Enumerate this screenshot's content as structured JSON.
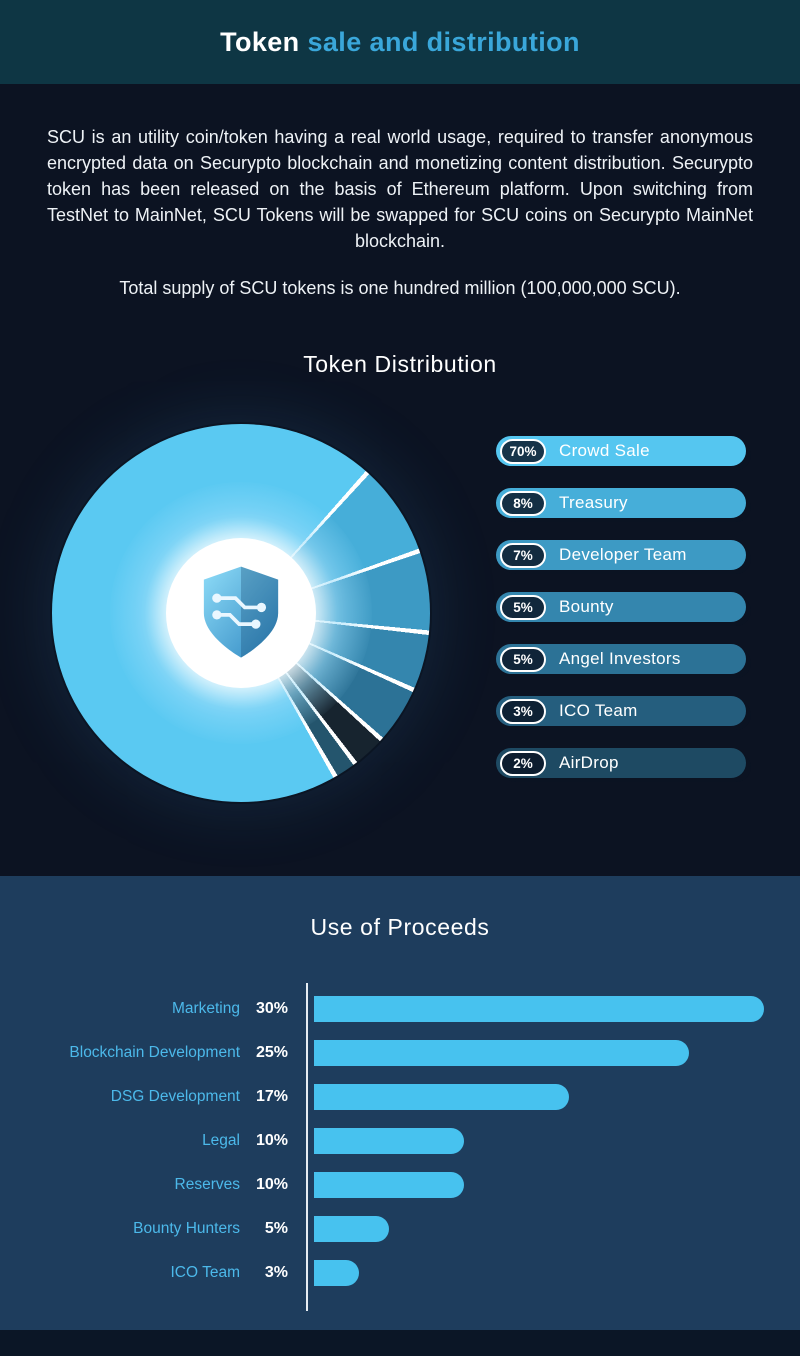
{
  "header": {
    "title_bold": "Token",
    "title_accent": " sale and distribution"
  },
  "intro": {
    "paragraph": "SCU is an utility coin/token having a real world usage, required to transfer anonymous encrypted data on Securypto blockchain and monetizing content distribution. Securypto token has been released on the basis of Ethereum platform. Upon switching from TestNet to MainNet, SCU Tokens will be swapped for SCU coins on Securypto MainNet blockchain.",
    "supply": "Total supply of SCU tokens is one hundred million (100,000,000 SCU)."
  },
  "distribution": {
    "title": "Token Distribution",
    "legend": [
      {
        "pct": "70%",
        "label": "Crowd Sale",
        "color": "#55c6f0"
      },
      {
        "pct": "8%",
        "label": "Treasury",
        "color": "#46aed9"
      },
      {
        "pct": "7%",
        "label": "Developer Team",
        "color": "#3d9ac4"
      },
      {
        "pct": "5%",
        "label": "Bounty",
        "color": "#3486ae"
      },
      {
        "pct": "5%",
        "label": "Angel Investors",
        "color": "#2c7296"
      },
      {
        "pct": "3%",
        "label": "ICO Team",
        "color": "#255e7e"
      },
      {
        "pct": "2%",
        "label": "AirDrop",
        "color": "#1e4a63"
      }
    ]
  },
  "proceeds": {
    "title": "Use of Proceeds",
    "axis_max": 30,
    "items": [
      {
        "label": "Marketing",
        "pct": "30%",
        "value": 30
      },
      {
        "label": "Blockchain Development",
        "pct": "25%",
        "value": 25
      },
      {
        "label": "DSG Development",
        "pct": "17%",
        "value": 17
      },
      {
        "label": "Legal",
        "pct": "10%",
        "value": 10
      },
      {
        "label": "Reserves",
        "pct": "10%",
        "value": 10
      },
      {
        "label": "Bounty Hunters",
        "pct": "5%",
        "value": 5
      },
      {
        "label": "ICO Team",
        "pct": "3%",
        "value": 3
      }
    ]
  },
  "chart_data": [
    {
      "type": "pie",
      "title": "Token Distribution",
      "labels": [
        "Crowd Sale",
        "Treasury",
        "Developer Team",
        "Bounty",
        "Angel Investors",
        "ICO Team",
        "AirDrop"
      ],
      "values": [
        70,
        8,
        7,
        5,
        5,
        3,
        2
      ],
      "unit": "%",
      "legend_position": "right",
      "start_angle": 42,
      "draw_order": [
        {
          "label": "Treasury",
          "value": 8,
          "color": "#46aed9"
        },
        {
          "label": "Developer Team",
          "value": 7,
          "color": "#3d9ac4"
        },
        {
          "label": "Bounty",
          "value": 5,
          "color": "#3486ae"
        },
        {
          "label": "Angel Investors",
          "value": 5,
          "color": "#2c7296"
        },
        {
          "label": "ICO Team",
          "value": 3,
          "color": "#17242f"
        },
        {
          "label": "AirDrop",
          "value": 2,
          "color": "#24556d"
        },
        {
          "label": "Crowd Sale",
          "value": 70,
          "color": "#5ac9f2"
        }
      ]
    },
    {
      "type": "bar",
      "title": "Use of Proceeds",
      "orientation": "horizontal",
      "categories": [
        "Marketing",
        "Blockchain Development",
        "DSG Development",
        "Legal",
        "Reserves",
        "Bounty Hunters",
        "ICO Team"
      ],
      "values": [
        30,
        25,
        17,
        10,
        10,
        5,
        3
      ],
      "unit": "%",
      "xlim": [
        0,
        30
      ],
      "bar_color": "#47c2ef"
    }
  ],
  "colors": {
    "header_bg": "#0e3644",
    "main_bg": "#0c1322",
    "proceeds_bg": "#1e3d5d",
    "accent_blue": "#3aa7da",
    "bar_blue": "#47c2ef"
  }
}
